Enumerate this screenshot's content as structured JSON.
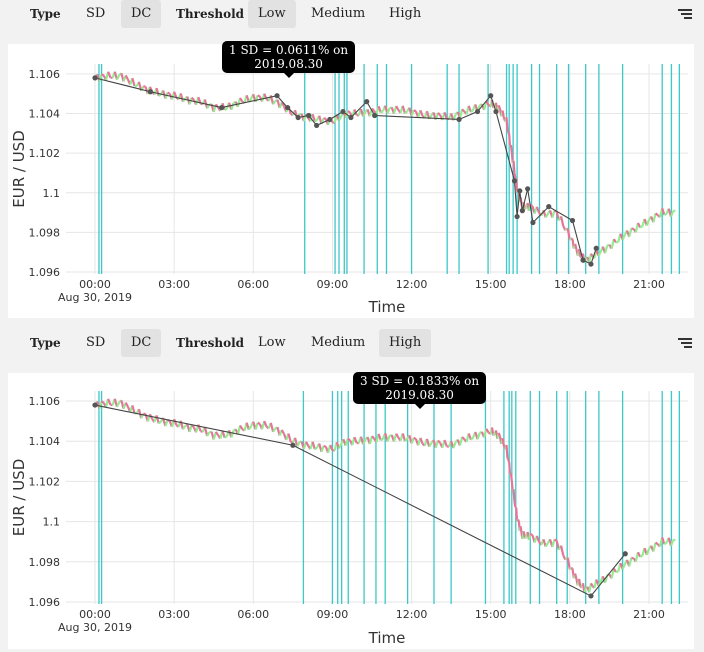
{
  "toolbars": [
    {
      "type_label": "Type",
      "sd_label": "SD",
      "dc_label": "DC",
      "threshold_label": "Threshold",
      "low_label": "Low",
      "medium_label": "Medium",
      "high_label": "High",
      "active_type": "DC",
      "active_threshold": "Low"
    },
    {
      "type_label": "Type",
      "sd_label": "SD",
      "dc_label": "DC",
      "threshold_label": "Threshold",
      "low_label": "Low",
      "medium_label": "Medium",
      "high_label": "High",
      "active_type": "DC",
      "active_threshold": "High"
    }
  ],
  "colors": {
    "up": "#90ee90",
    "down": "#e8739a",
    "vline": "#3cc8c8",
    "dc_line": "#444444",
    "grid": "#e6e6e6"
  },
  "chart_data": [
    {
      "type": "line",
      "tooltip": "1 SD = 0.0611% on 2019.08.30",
      "tooltip_line1": "1 SD = 0.0611% on",
      "tooltip_line2": "2019.08.30",
      "xlabel": "Time",
      "ylabel": "EUR / USD",
      "date_label": "Aug 30, 2019",
      "xlim": [
        -0.5,
        23.6
      ],
      "ylim": [
        1.0959,
        1.1065
      ],
      "xticks": [
        "00:00",
        "03:00",
        "06:00",
        "09:00",
        "12:00",
        "15:00",
        "18:00",
        "21:00"
      ],
      "xtick_values": [
        0,
        3,
        6,
        9,
        12,
        15,
        18,
        21
      ],
      "yticks": [
        "1.096",
        "1.098",
        "1.1",
        "1.102",
        "1.104",
        "1.106"
      ],
      "ytick_values": [
        1.096,
        1.098,
        1.1,
        1.102,
        1.104,
        1.106
      ],
      "price_series": {
        "x": [
          0,
          0.5,
          1,
          1.5,
          2,
          2.5,
          3,
          3.5,
          4,
          4.5,
          5,
          5.5,
          6,
          6.5,
          7,
          7.5,
          8,
          8.5,
          9,
          9.5,
          10,
          10.5,
          11,
          11.5,
          12,
          12.5,
          13,
          13.5,
          14,
          14.5,
          15,
          15.3,
          15.6,
          15.8,
          16,
          16.2,
          16.5,
          17,
          17.5,
          18,
          18.3,
          18.6,
          19,
          19.5,
          20,
          20.5,
          21,
          21.5,
          22
        ],
        "y": [
          1.1058,
          1.1059,
          1.1059,
          1.1055,
          1.1052,
          1.105,
          1.1049,
          1.1047,
          1.1046,
          1.1043,
          1.1043,
          1.1046,
          1.1048,
          1.1048,
          1.1045,
          1.104,
          1.1038,
          1.1037,
          1.1036,
          1.104,
          1.104,
          1.1041,
          1.1042,
          1.1042,
          1.1041,
          1.1039,
          1.1039,
          1.1038,
          1.1041,
          1.1043,
          1.1045,
          1.1043,
          1.1036,
          1.102,
          1.1002,
          1.0993,
          1.0993,
          1.0989,
          1.099,
          1.0978,
          1.097,
          1.0966,
          1.0969,
          1.0973,
          1.0978,
          1.0982,
          1.0986,
          1.099,
          1.099
        ]
      },
      "dc_points": {
        "x": [
          0,
          2.1,
          4.8,
          6.9,
          7.3,
          7.7,
          8.1,
          8.4,
          8.9,
          9.4,
          9.7,
          10.3,
          10.6,
          13.8,
          14.5,
          15.0,
          15.2,
          15.9,
          16.0,
          16.1,
          16.2,
          16.4,
          16.6,
          17.2,
          18.1,
          18.5,
          18.8,
          19.0
        ],
        "y": [
          1.1058,
          1.1051,
          1.1043,
          1.1049,
          1.1043,
          1.1038,
          1.1039,
          1.1034,
          1.1037,
          1.1041,
          1.1038,
          1.1046,
          1.1039,
          1.1037,
          1.1041,
          1.1049,
          1.1041,
          1.1006,
          1.0988,
          1.1001,
          1.0991,
          1.1002,
          1.0985,
          1.0993,
          1.0986,
          1.0966,
          1.0964,
          1.0972
        ]
      },
      "event_times": [
        0.15,
        0.25,
        7.95,
        9.1,
        9.25,
        9.45,
        9.55,
        10.2,
        10.7,
        11.05,
        12.0,
        13.35,
        13.8,
        14.9,
        15.6,
        15.7,
        15.85,
        16.0,
        16.55,
        16.85,
        17.5,
        17.95,
        18.6,
        19.1,
        20.0,
        21.5,
        21.85,
        22.15
      ]
    },
    {
      "type": "line",
      "tooltip": "3 SD = 0.1833% on 2019.08.30",
      "tooltip_line1": "3 SD = 0.1833% on",
      "tooltip_line2": "2019.08.30",
      "xlabel": "Time",
      "ylabel": "EUR / USD",
      "date_label": "Aug 30, 2019",
      "xlim": [
        -0.5,
        23.6
      ],
      "ylim": [
        1.0959,
        1.1065
      ],
      "xticks": [
        "00:00",
        "03:00",
        "06:00",
        "09:00",
        "12:00",
        "15:00",
        "18:00",
        "21:00"
      ],
      "xtick_values": [
        0,
        3,
        6,
        9,
        12,
        15,
        18,
        21
      ],
      "yticks": [
        "1.096",
        "1.098",
        "1.1",
        "1.102",
        "1.104",
        "1.106"
      ],
      "ytick_values": [
        1.096,
        1.098,
        1.1,
        1.102,
        1.104,
        1.106
      ],
      "price_series": {
        "x": [
          0,
          0.5,
          1,
          1.5,
          2,
          2.5,
          3,
          3.5,
          4,
          4.5,
          5,
          5.5,
          6,
          6.5,
          7,
          7.5,
          8,
          8.5,
          9,
          9.5,
          10,
          10.5,
          11,
          11.5,
          12,
          12.5,
          13,
          13.5,
          14,
          14.5,
          15,
          15.3,
          15.6,
          15.8,
          16,
          16.2,
          16.5,
          17,
          17.5,
          18,
          18.3,
          18.6,
          19,
          19.5,
          20,
          20.5,
          21,
          21.5,
          22
        ],
        "y": [
          1.1058,
          1.1059,
          1.1059,
          1.1055,
          1.1052,
          1.105,
          1.1049,
          1.1047,
          1.1046,
          1.1043,
          1.1043,
          1.1046,
          1.1048,
          1.1048,
          1.1045,
          1.104,
          1.1038,
          1.1037,
          1.1036,
          1.104,
          1.104,
          1.1041,
          1.1042,
          1.1042,
          1.1041,
          1.1039,
          1.1039,
          1.1038,
          1.1041,
          1.1043,
          1.1045,
          1.1043,
          1.1036,
          1.102,
          1.1002,
          1.0993,
          1.0993,
          1.0989,
          1.099,
          1.0978,
          1.097,
          1.0966,
          1.0969,
          1.0973,
          1.0978,
          1.0982,
          1.0986,
          1.099,
          1.099
        ]
      },
      "dc_points": {
        "x": [
          0,
          7.5,
          18.8,
          20.1
        ],
        "y": [
          1.1058,
          1.1038,
          1.0963,
          1.0984
        ]
      },
      "event_times": [
        0.15,
        0.25,
        7.9,
        9.0,
        9.2,
        9.35,
        9.6,
        10.2,
        10.65,
        11.0,
        11.85,
        12.85,
        13.5,
        14.8,
        15.5,
        15.7,
        15.8,
        15.95,
        16.5,
        16.85,
        17.5,
        17.9,
        18.6,
        19.1,
        20.0,
        21.5,
        21.85,
        22.15
      ]
    }
  ]
}
